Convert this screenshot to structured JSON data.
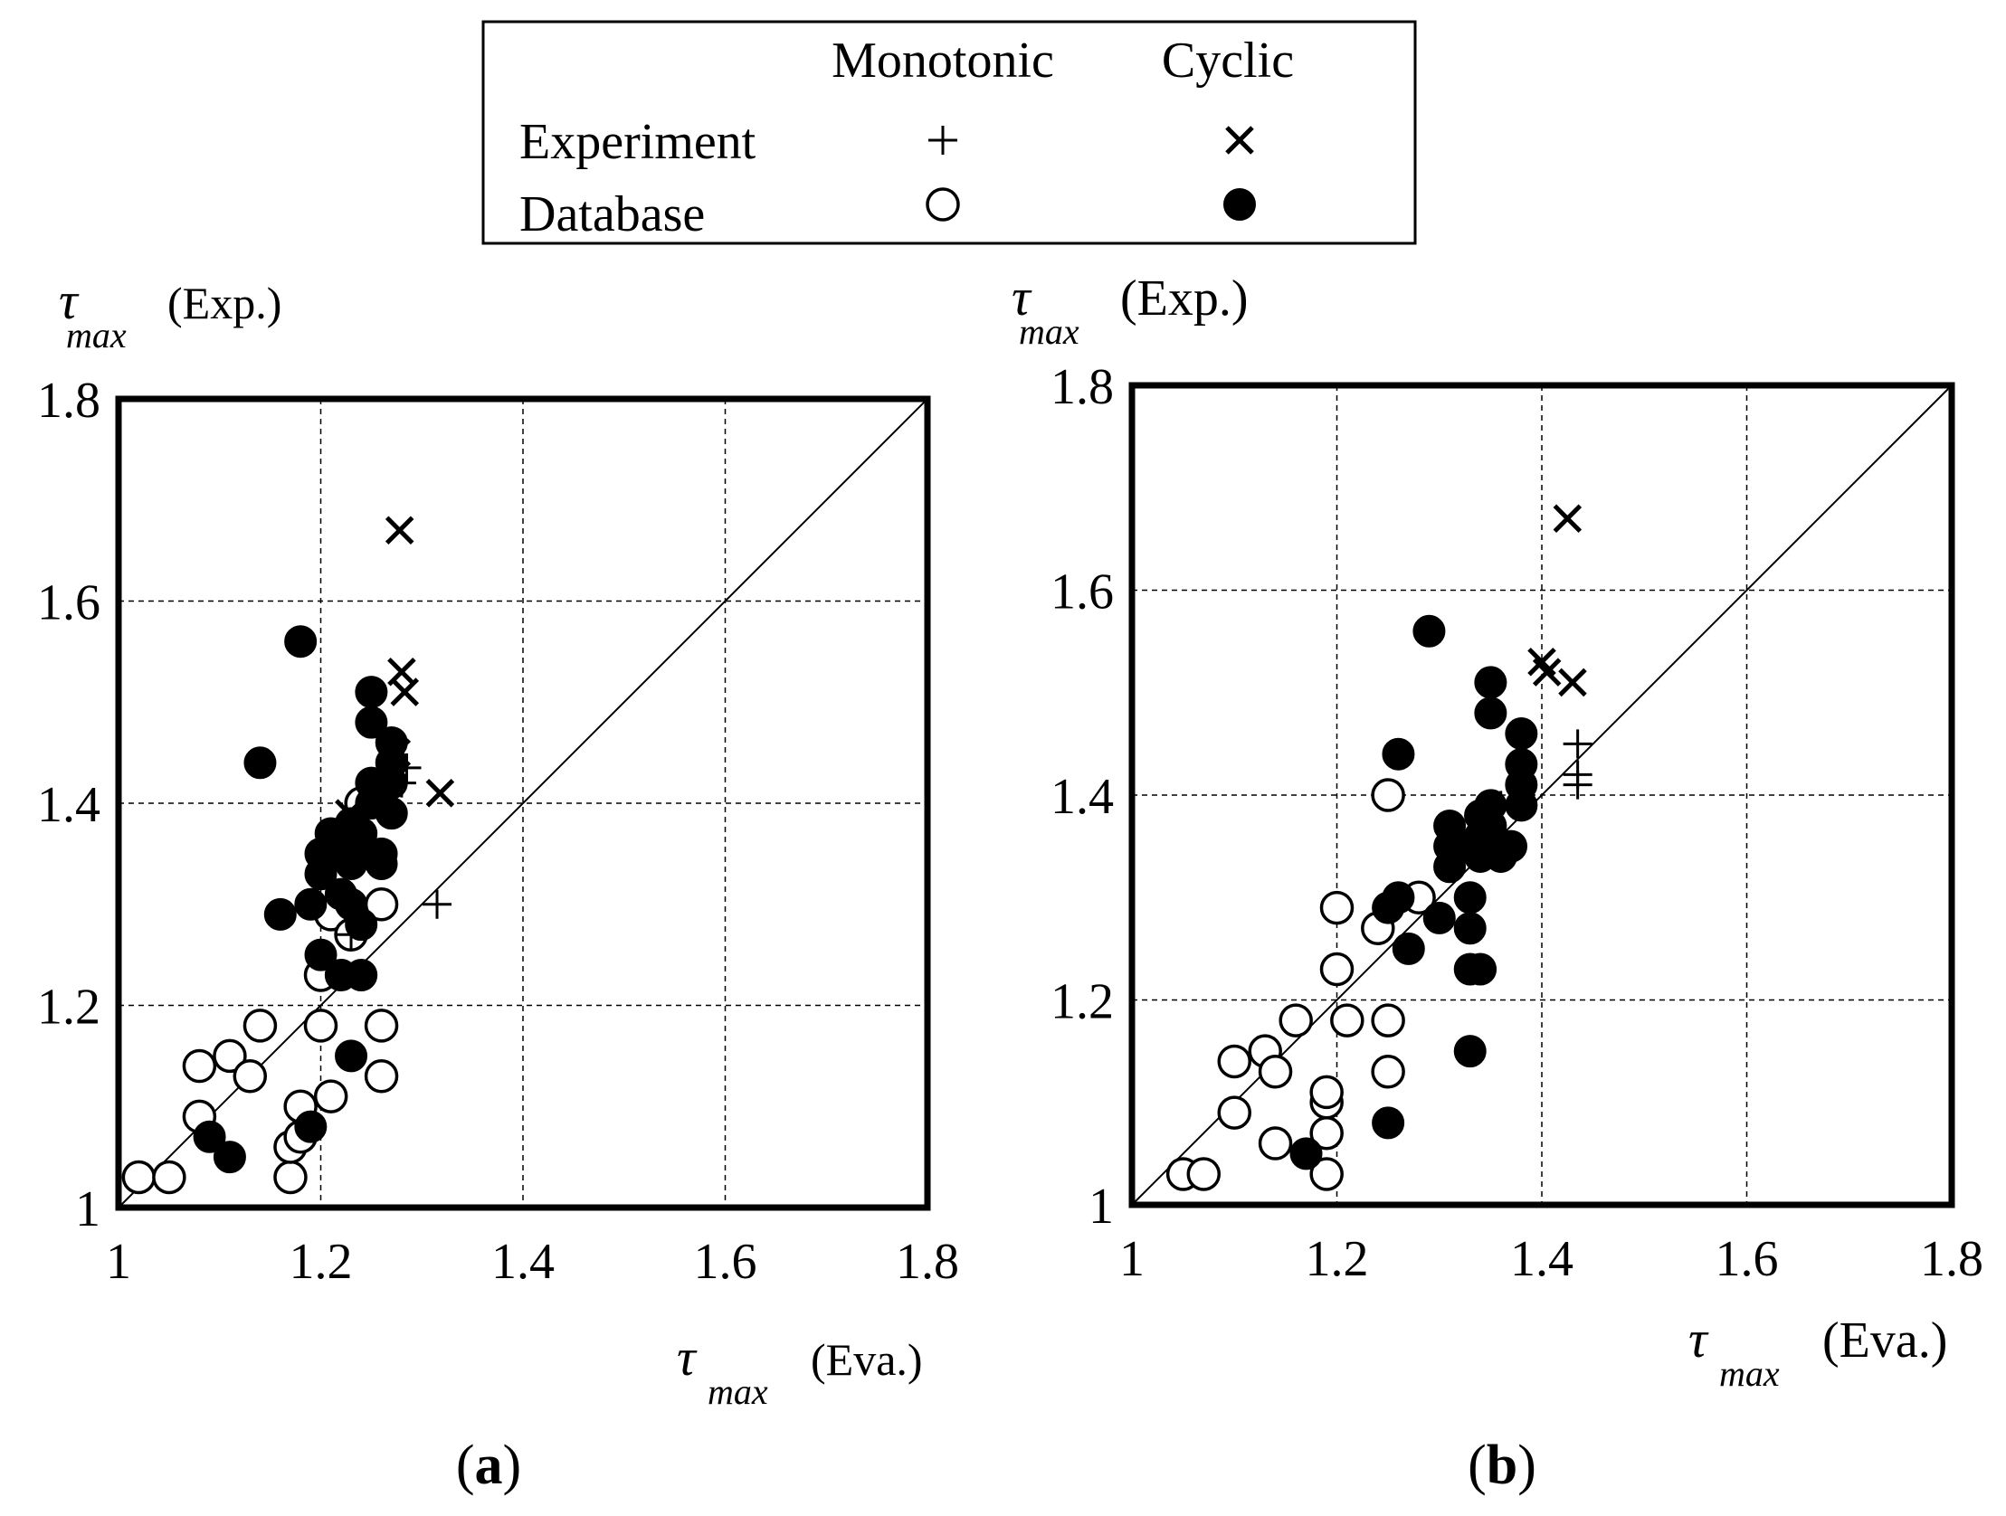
{
  "legend": {
    "col_monotonic": "Monotonic",
    "col_cyclic": "Cyclic",
    "row_experiment": "Experiment",
    "row_database": "Database"
  },
  "chart_data": [
    {
      "type": "scatter",
      "panel_label_paren_open": "(",
      "panel_label": "a",
      "panel_label_paren_close": ")",
      "ylabel": {
        "symbol": "τ",
        "subscript": "max",
        "text": "(Exp.)"
      },
      "xlabel": {
        "symbol": "τ",
        "subscript": "max",
        "text": "(Eva.)"
      },
      "xlim": [
        1,
        1.8
      ],
      "ylim": [
        1,
        1.8
      ],
      "xticks": [
        "1",
        "1.2",
        "1.4",
        "1.6",
        "1.8"
      ],
      "yticks": [
        "1",
        "1.2",
        "1.4",
        "1.6",
        "1.8"
      ],
      "grid": true,
      "reference_line": "y = x",
      "series": [
        {
          "name": "Experiment Monotonic",
          "marker": "plus",
          "points": [
            [
              1.315,
              1.3
            ],
            [
              1.23,
              1.27
            ],
            [
              1.28,
              1.42
            ],
            [
              1.285,
              1.435
            ]
          ]
        },
        {
          "name": "Experiment Cyclic",
          "marker": "x",
          "points": [
            [
              1.278,
              1.67
            ],
            [
              1.28,
              1.53
            ],
            [
              1.283,
              1.51
            ],
            [
              1.318,
              1.41
            ],
            [
              1.228,
              1.39
            ],
            [
              1.275,
              1.45
            ]
          ]
        },
        {
          "name": "Database Monotonic",
          "marker": "circle-open",
          "points": [
            [
              1.02,
              1.03
            ],
            [
              1.05,
              1.03
            ],
            [
              1.08,
              1.14
            ],
            [
              1.11,
              1.15
            ],
            [
              1.13,
              1.13
            ],
            [
              1.14,
              1.18
            ],
            [
              1.08,
              1.09
            ],
            [
              1.17,
              1.03
            ],
            [
              1.17,
              1.06
            ],
            [
              1.18,
              1.07
            ],
            [
              1.18,
              1.1
            ],
            [
              1.21,
              1.11
            ],
            [
              1.2,
              1.18
            ],
            [
              1.2,
              1.23
            ],
            [
              1.21,
              1.29
            ],
            [
              1.23,
              1.27
            ],
            [
              1.26,
              1.3
            ],
            [
              1.26,
              1.18
            ],
            [
              1.26,
              1.13
            ],
            [
              1.24,
              1.4
            ]
          ]
        },
        {
          "name": "Database Cyclic",
          "marker": "circle-filled",
          "points": [
            [
              1.18,
              1.56
            ],
            [
              1.14,
              1.44
            ],
            [
              1.16,
              1.29
            ],
            [
              1.09,
              1.07
            ],
            [
              1.11,
              1.05
            ],
            [
              1.19,
              1.08
            ],
            [
              1.23,
              1.15
            ],
            [
              1.2,
              1.25
            ],
            [
              1.22,
              1.23
            ],
            [
              1.24,
              1.23
            ],
            [
              1.19,
              1.3
            ],
            [
              1.22,
              1.31
            ],
            [
              1.23,
              1.3
            ],
            [
              1.24,
              1.28
            ],
            [
              1.2,
              1.33
            ],
            [
              1.2,
              1.35
            ],
            [
              1.21,
              1.37
            ],
            [
              1.22,
              1.35
            ],
            [
              1.23,
              1.34
            ],
            [
              1.24,
              1.36
            ],
            [
              1.25,
              1.35
            ],
            [
              1.26,
              1.34
            ],
            [
              1.26,
              1.35
            ],
            [
              1.23,
              1.38
            ],
            [
              1.24,
              1.37
            ],
            [
              1.25,
              1.4
            ],
            [
              1.25,
              1.42
            ],
            [
              1.27,
              1.39
            ],
            [
              1.27,
              1.42
            ],
            [
              1.27,
              1.44
            ],
            [
              1.27,
              1.46
            ],
            [
              1.25,
              1.48
            ],
            [
              1.25,
              1.51
            ]
          ]
        }
      ]
    },
    {
      "type": "scatter",
      "panel_label_paren_open": "(",
      "panel_label": "b",
      "panel_label_paren_close": ")",
      "ylabel": {
        "symbol": "τ",
        "subscript": "max",
        "text": "(Exp.)"
      },
      "xlabel": {
        "symbol": "τ",
        "subscript": "max",
        "text": "(Eva.)"
      },
      "xlim": [
        1,
        1.8
      ],
      "ylim": [
        1,
        1.8
      ],
      "xticks": [
        "1",
        "1.2",
        "1.4",
        "1.6",
        "1.8"
      ],
      "yticks": [
        "1",
        "1.2",
        "1.4",
        "1.6",
        "1.8"
      ],
      "grid": true,
      "reference_line": "y = x",
      "series": [
        {
          "name": "Experiment Monotonic",
          "marker": "plus",
          "points": [
            [
              1.435,
              1.45
            ],
            [
              1.435,
              1.42
            ],
            [
              1.435,
              1.41
            ],
            [
              1.36,
              1.39
            ]
          ]
        },
        {
          "name": "Experiment Cyclic",
          "marker": "x",
          "points": [
            [
              1.425,
              1.67
            ],
            [
              1.4,
              1.53
            ],
            [
              1.405,
              1.52
            ],
            [
              1.43,
              1.51
            ]
          ]
        },
        {
          "name": "Database Monotonic",
          "marker": "circle-open",
          "points": [
            [
              1.05,
              1.03
            ],
            [
              1.07,
              1.03
            ],
            [
              1.1,
              1.09
            ],
            [
              1.1,
              1.14
            ],
            [
              1.13,
              1.15
            ],
            [
              1.14,
              1.13
            ],
            [
              1.14,
              1.06
            ],
            [
              1.16,
              1.18
            ],
            [
              1.19,
              1.03
            ],
            [
              1.19,
              1.07
            ],
            [
              1.19,
              1.1
            ],
            [
              1.19,
              1.11
            ],
            [
              1.2,
              1.23
            ],
            [
              1.2,
              1.29
            ],
            [
              1.21,
              1.18
            ],
            [
              1.24,
              1.27
            ],
            [
              1.28,
              1.3
            ],
            [
              1.25,
              1.18
            ],
            [
              1.25,
              1.13
            ],
            [
              1.25,
              1.4
            ]
          ]
        },
        {
          "name": "Database Cyclic",
          "marker": "circle-filled",
          "points": [
            [
              1.29,
              1.56
            ],
            [
              1.26,
              1.44
            ],
            [
              1.25,
              1.29
            ],
            [
              1.26,
              1.3
            ],
            [
              1.27,
              1.25
            ],
            [
              1.3,
              1.28
            ],
            [
              1.17,
              1.05
            ],
            [
              1.25,
              1.08
            ],
            [
              1.33,
              1.15
            ],
            [
              1.33,
              1.23
            ],
            [
              1.34,
              1.23
            ],
            [
              1.33,
              1.27
            ],
            [
              1.33,
              1.3
            ],
            [
              1.31,
              1.33
            ],
            [
              1.31,
              1.35
            ],
            [
              1.31,
              1.37
            ],
            [
              1.33,
              1.35
            ],
            [
              1.34,
              1.34
            ],
            [
              1.34,
              1.36
            ],
            [
              1.35,
              1.35
            ],
            [
              1.36,
              1.34
            ],
            [
              1.34,
              1.38
            ],
            [
              1.35,
              1.37
            ],
            [
              1.35,
              1.39
            ],
            [
              1.38,
              1.39
            ],
            [
              1.38,
              1.41
            ],
            [
              1.38,
              1.43
            ],
            [
              1.38,
              1.46
            ],
            [
              1.35,
              1.48
            ],
            [
              1.35,
              1.51
            ],
            [
              1.37,
              1.35
            ]
          ]
        }
      ]
    }
  ]
}
